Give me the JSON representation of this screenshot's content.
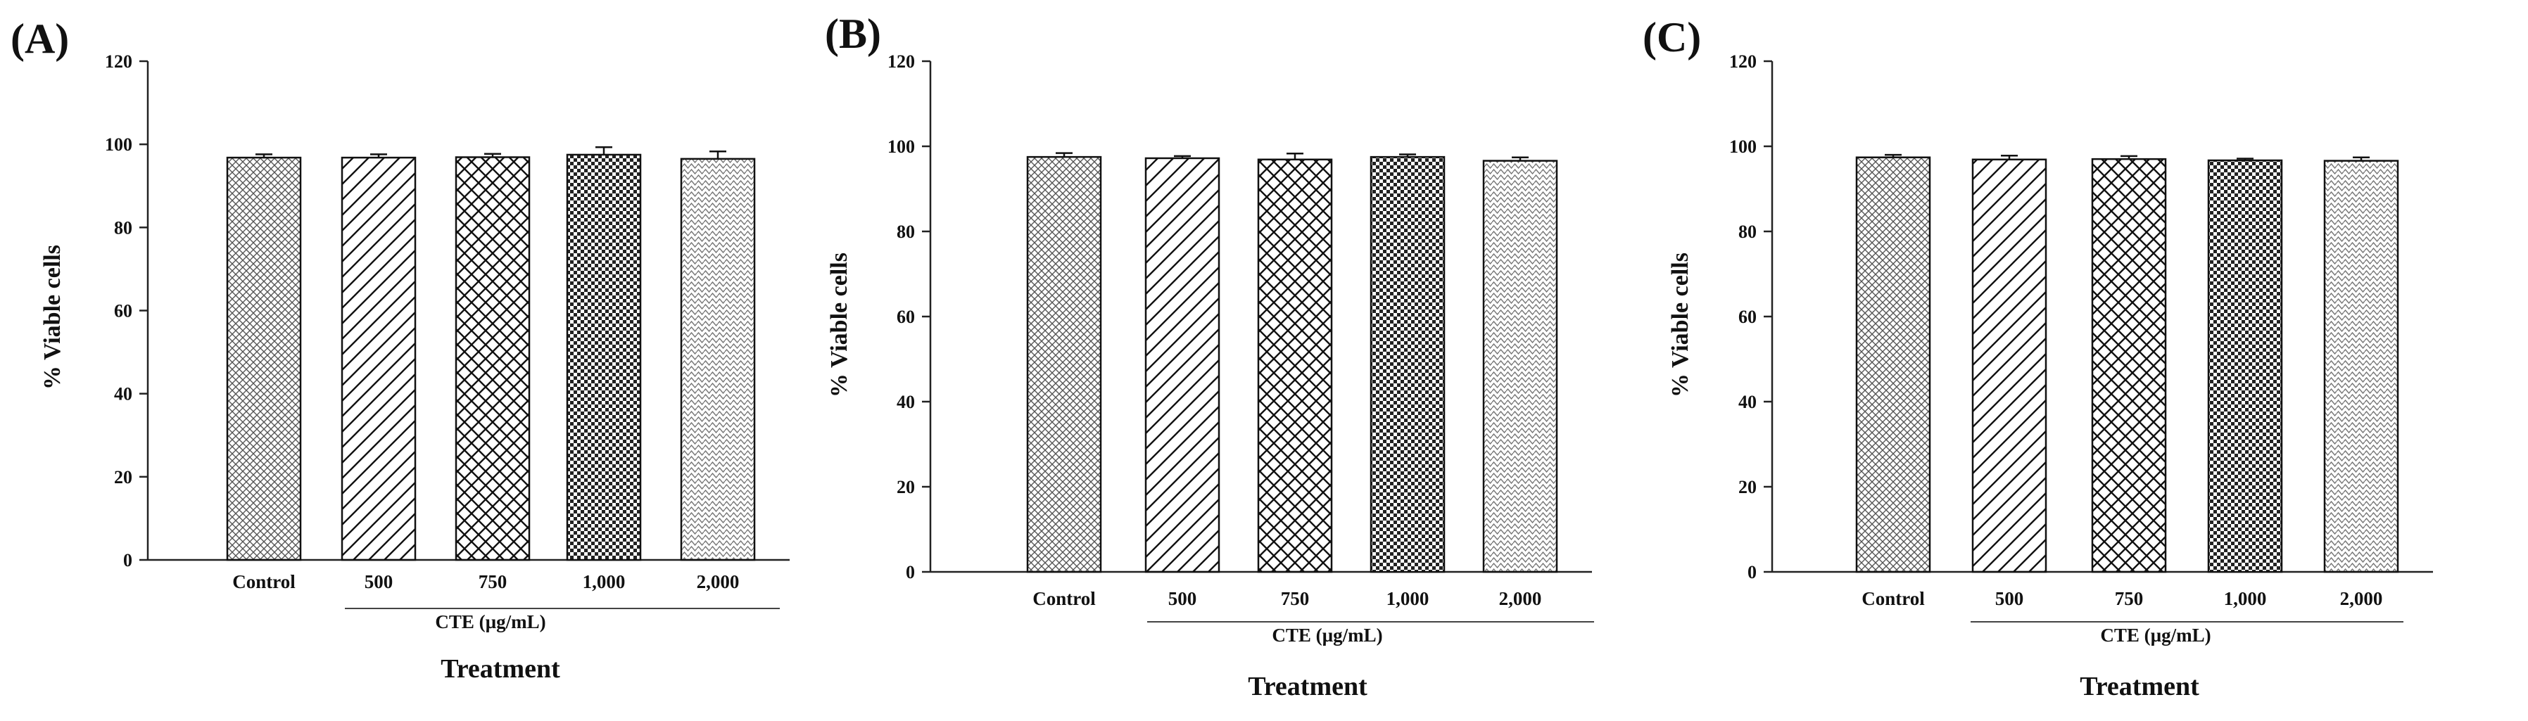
{
  "figure": {
    "panel_count": 3
  },
  "chart_data": [
    {
      "panel_label": "(A)",
      "type": "bar",
      "categories": [
        "Control",
        "500",
        "750",
        "1,000",
        "2,000"
      ],
      "values": [
        96.8,
        96.8,
        96.9,
        97.5,
        96.5
      ],
      "errors": [
        0.8,
        0.8,
        0.8,
        1.8,
        1.8
      ],
      "ylabel": "% Viable cells",
      "xlabel": "Treatment",
      "group_label": "CTE (µg/mL)",
      "ylim": [
        0,
        120
      ],
      "yticks": [
        "0",
        "20",
        "40",
        "60",
        "80",
        "100",
        "120"
      ],
      "grid": false
    },
    {
      "panel_label": "(B)",
      "type": "bar",
      "categories": [
        "Control",
        "500",
        "750",
        "1,000",
        "2,000"
      ],
      "values": [
        97.5,
        97.2,
        96.9,
        97.5,
        96.6
      ],
      "errors": [
        0.9,
        0.5,
        1.4,
        0.6,
        0.8
      ],
      "ylabel": "% Viable cells",
      "xlabel": "Treatment",
      "group_label": "CTE (µg/mL)",
      "ylim": [
        0,
        120
      ],
      "yticks": [
        "0",
        "20",
        "40",
        "60",
        "80",
        "100",
        "120"
      ],
      "grid": false
    },
    {
      "panel_label": "(C)",
      "type": "bar",
      "categories": [
        "Control",
        "500",
        "750",
        "1,000",
        "2,000"
      ],
      "values": [
        97.4,
        96.9,
        97.0,
        96.7,
        96.6
      ],
      "errors": [
        0.6,
        0.9,
        0.7,
        0.4,
        0.8
      ],
      "ylabel": "% Viable cells",
      "xlabel": "Treatment",
      "group_label": "CTE (µg/mL)",
      "ylim": [
        0,
        120
      ],
      "yticks": [
        "0",
        "20",
        "40",
        "60",
        "80",
        "100",
        "120"
      ],
      "grid": false
    }
  ]
}
